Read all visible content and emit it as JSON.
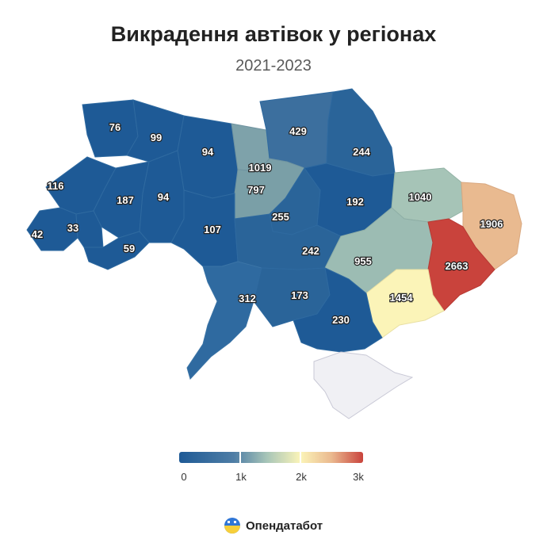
{
  "title": "Викрадення автівок у регіонах",
  "subtitle": "2021-2023",
  "regions": [
    {
      "value": "76"
    },
    {
      "value": "99"
    },
    {
      "value": "94"
    },
    {
      "value": "1019"
    },
    {
      "value": "429"
    },
    {
      "value": "244"
    },
    {
      "value": "116"
    },
    {
      "value": "187"
    },
    {
      "value": "94"
    },
    {
      "value": "797"
    },
    {
      "value": "255"
    },
    {
      "value": "192"
    },
    {
      "value": "1040"
    },
    {
      "value": "1906"
    },
    {
      "value": "42"
    },
    {
      "value": "33"
    },
    {
      "value": "59"
    },
    {
      "value": "107"
    },
    {
      "value": "242"
    },
    {
      "value": "955"
    },
    {
      "value": "2663"
    },
    {
      "value": "1454"
    },
    {
      "value": "312"
    },
    {
      "value": "173"
    },
    {
      "value": "230"
    }
  ],
  "legend": {
    "ticks": [
      "0",
      "1k",
      "2k",
      "3k"
    ],
    "colors": [
      "#1e5a96",
      "#4f7ea6",
      "#a9c6b8",
      "#fbf4b8",
      "#eab88e",
      "#c9433c"
    ]
  },
  "brand": {
    "name": "Опендатабот"
  }
}
